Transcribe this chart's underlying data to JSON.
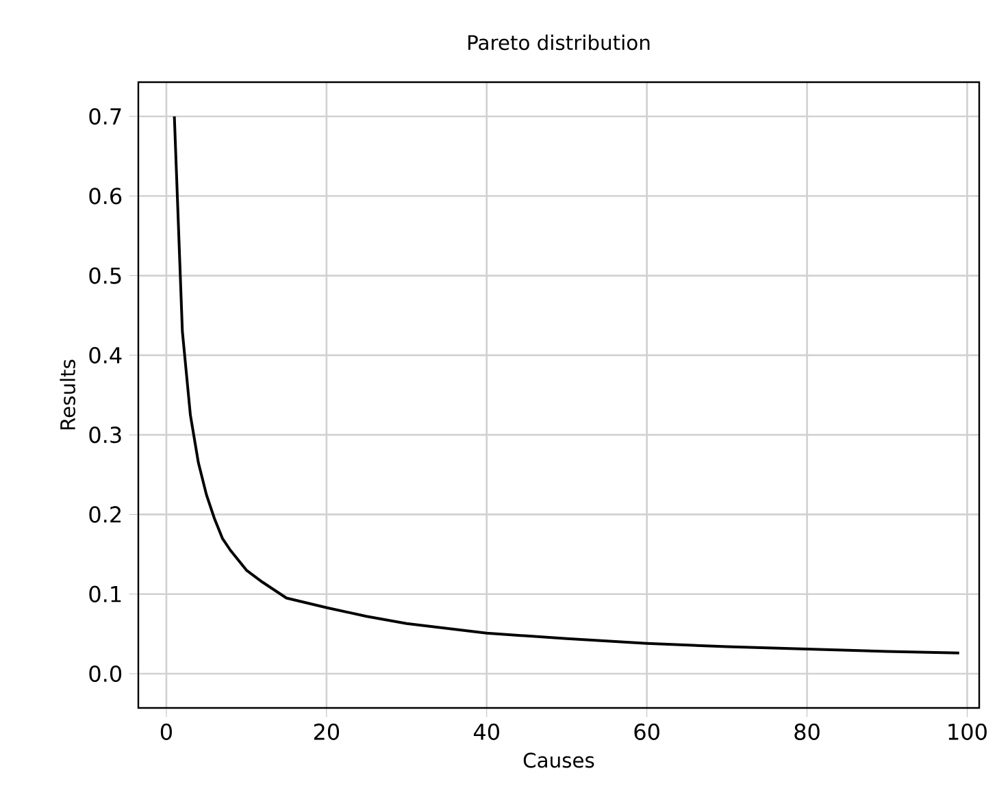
{
  "chart_data": {
    "type": "line",
    "title": "Pareto distribution",
    "xlabel": "Causes",
    "ylabel": "Results",
    "x": [
      1,
      2,
      3,
      4,
      5,
      6,
      7,
      8,
      10,
      12,
      15,
      20,
      25,
      30,
      40,
      50,
      60,
      70,
      80,
      90,
      99
    ],
    "series": [
      {
        "color": "#000000",
        "values": [
          0.7,
          0.43,
          0.325,
          0.265,
          0.225,
          0.195,
          0.17,
          0.155,
          0.13,
          0.115,
          0.095,
          0.083,
          0.072,
          0.063,
          0.051,
          0.044,
          0.038,
          0.034,
          0.031,
          0.028,
          0.026
        ]
      }
    ],
    "xlim": [
      -3.5,
      101.5
    ],
    "ylim": [
      -0.043,
      0.743
    ],
    "xticks": [
      0,
      20,
      40,
      60,
      80,
      100
    ],
    "yticks": [
      {
        "value": 0,
        "label": "0.0"
      },
      0.1,
      0.2,
      0.3,
      0.4,
      0.5,
      0.6,
      0.7
    ],
    "grid": true,
    "marker": "none",
    "line_style": "solid"
  }
}
